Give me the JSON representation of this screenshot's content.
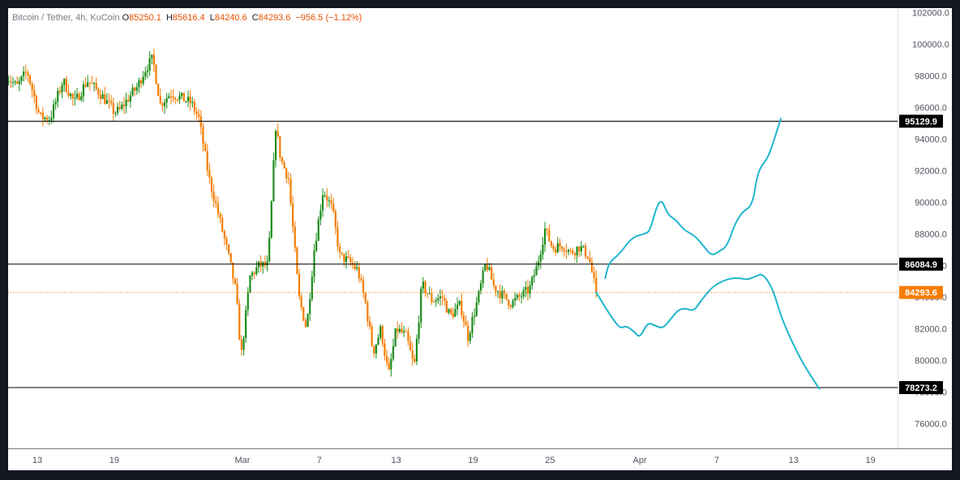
{
  "header": {
    "symbol": "Bitcoin / Tether, 4h, KuCoin",
    "open_key": "O",
    "open": "85250.1",
    "high_key": "H",
    "high": "85616.4",
    "low_key": "L",
    "low": "84240.6",
    "close_key": "C",
    "close": "84293.6",
    "change": "−956.5 (−1.12%)"
  },
  "colors": {
    "up": "#1b8c1b",
    "down": "#f57c00",
    "projection": "#20b6cf",
    "levels": "#000000",
    "last_price": "#f57c00"
  },
  "chart_data": {
    "type": "candlestick",
    "symbol": "Bitcoin / Tether",
    "interval": "4h",
    "exchange": "KuCoin",
    "ylim": [
      75000,
      102000
    ],
    "y_ticks": [
      76000,
      78000,
      80000,
      82000,
      84000,
      86000,
      88000,
      90000,
      92000,
      94000,
      96000,
      98000,
      100000,
      102000
    ],
    "y_tick_labels": [
      "76000.0",
      "78000.0",
      "80000.0",
      "82000.0",
      "84000.0",
      "86000.0",
      "88000.0",
      "90000.0",
      "92000.0",
      "94000.0",
      "96000.0",
      "98000.0",
      "100000.0",
      "102000.0"
    ],
    "x_tick_labels": [
      "13",
      "19",
      "Mar",
      "7",
      "13",
      "19",
      "25",
      "Apr",
      "7",
      "13",
      "19"
    ],
    "x_tick_days": [
      13,
      19,
      29,
      35,
      41,
      47,
      53,
      60,
      66,
      72,
      78
    ],
    "x_range_days": [
      10.6,
      84.2
    ],
    "ohlc_anchors": [
      [
        10.6,
        98000
      ],
      [
        11.4,
        97300
      ],
      [
        12.2,
        98300
      ],
      [
        13.2,
        95400
      ],
      [
        14.0,
        95300
      ],
      [
        15.0,
        97700
      ],
      [
        15.9,
        96300
      ],
      [
        16.9,
        97700
      ],
      [
        18.0,
        96800
      ],
      [
        19.0,
        95700
      ],
      [
        19.4,
        95800
      ],
      [
        20.2,
        96700
      ],
      [
        20.8,
        97300
      ],
      [
        21.4,
        98400
      ],
      [
        22.0,
        99100
      ],
      [
        22.6,
        96200
      ],
      [
        23.4,
        96900
      ],
      [
        24.2,
        96600
      ],
      [
        25.0,
        96300
      ],
      [
        25.6,
        95300
      ],
      [
        26.4,
        91500
      ],
      [
        27.2,
        89000
      ],
      [
        28.0,
        86300
      ],
      [
        28.5,
        84300
      ],
      [
        28.9,
        80200
      ],
      [
        29.6,
        85300
      ],
      [
        30.3,
        86000
      ],
      [
        31.0,
        86000
      ],
      [
        31.6,
        94800
      ],
      [
        32.0,
        92700
      ],
      [
        32.6,
        91500
      ],
      [
        33.4,
        84000
      ],
      [
        34.0,
        82000
      ],
      [
        34.6,
        87000
      ],
      [
        35.3,
        90800
      ],
      [
        36.0,
        89600
      ],
      [
        36.6,
        86600
      ],
      [
        37.2,
        86300
      ],
      [
        38.0,
        85700
      ],
      [
        38.6,
        83600
      ],
      [
        39.2,
        80500
      ],
      [
        39.8,
        82000
      ],
      [
        40.4,
        79000
      ],
      [
        41.0,
        82000
      ],
      [
        41.8,
        81500
      ],
      [
        42.4,
        79500
      ],
      [
        43.0,
        84800
      ],
      [
        43.8,
        83800
      ],
      [
        44.6,
        84000
      ],
      [
        45.2,
        82800
      ],
      [
        46.0,
        83500
      ],
      [
        46.6,
        81500
      ],
      [
        47.4,
        84000
      ],
      [
        48.0,
        86200
      ],
      [
        48.6,
        84700
      ],
      [
        49.4,
        84000
      ],
      [
        50.0,
        83600
      ],
      [
        50.6,
        84000
      ],
      [
        51.4,
        84500
      ],
      [
        52.0,
        86000
      ],
      [
        52.6,
        88300
      ],
      [
        53.2,
        87100
      ],
      [
        54.0,
        87300
      ],
      [
        54.6,
        86800
      ],
      [
        55.3,
        87200
      ],
      [
        56.0,
        86600
      ],
      [
        56.6,
        84293.6
      ]
    ],
    "horizontal_levels": [
      95129.9,
      86084.9,
      78273.2
    ],
    "level_labels": [
      "95129.9",
      "86084.9",
      "78273.2"
    ],
    "last_price": 84293.6,
    "last_price_label": "84293.6",
    "projection_paths": [
      {
        "points": [
          [
            57.3,
            85200
          ],
          [
            57.6,
            86200
          ],
          [
            58.4,
            86700
          ],
          [
            59.4,
            87800
          ],
          [
            60.4,
            88000
          ],
          [
            60.8,
            88200
          ],
          [
            61.3,
            89700
          ],
          [
            61.7,
            90200
          ],
          [
            62.2,
            89200
          ],
          [
            62.8,
            88900
          ],
          [
            63.4,
            88300
          ],
          [
            63.8,
            88100
          ],
          [
            64.4,
            87800
          ],
          [
            65.0,
            87200
          ],
          [
            65.6,
            86600
          ],
          [
            66.2,
            86900
          ],
          [
            66.8,
            87200
          ],
          [
            67.4,
            88600
          ],
          [
            68.0,
            89400
          ],
          [
            68.8,
            89800
          ],
          [
            69.2,
            92000
          ],
          [
            70.0,
            92800
          ],
          [
            70.5,
            94000
          ],
          [
            71.0,
            95300
          ]
        ]
      },
      {
        "points": [
          [
            56.6,
            84293.6
          ],
          [
            57.2,
            83500
          ],
          [
            57.9,
            82600
          ],
          [
            58.5,
            82000
          ],
          [
            58.9,
            82200
          ],
          [
            59.6,
            81800
          ],
          [
            60.0,
            81400
          ],
          [
            60.6,
            82400
          ],
          [
            61.2,
            82200
          ],
          [
            61.8,
            82000
          ],
          [
            62.4,
            82600
          ],
          [
            63.0,
            83200
          ],
          [
            63.6,
            83300
          ],
          [
            64.2,
            83100
          ],
          [
            64.8,
            83800
          ],
          [
            65.6,
            84600
          ],
          [
            66.4,
            85000
          ],
          [
            67.2,
            85200
          ],
          [
            67.8,
            85200
          ],
          [
            68.4,
            85100
          ],
          [
            69.0,
            85300
          ],
          [
            69.6,
            85500
          ],
          [
            70.4,
            84500
          ],
          [
            71.0,
            82800
          ],
          [
            71.8,
            81300
          ],
          [
            72.6,
            80000
          ],
          [
            73.2,
            79200
          ],
          [
            74.0,
            78200
          ]
        ]
      }
    ]
  }
}
